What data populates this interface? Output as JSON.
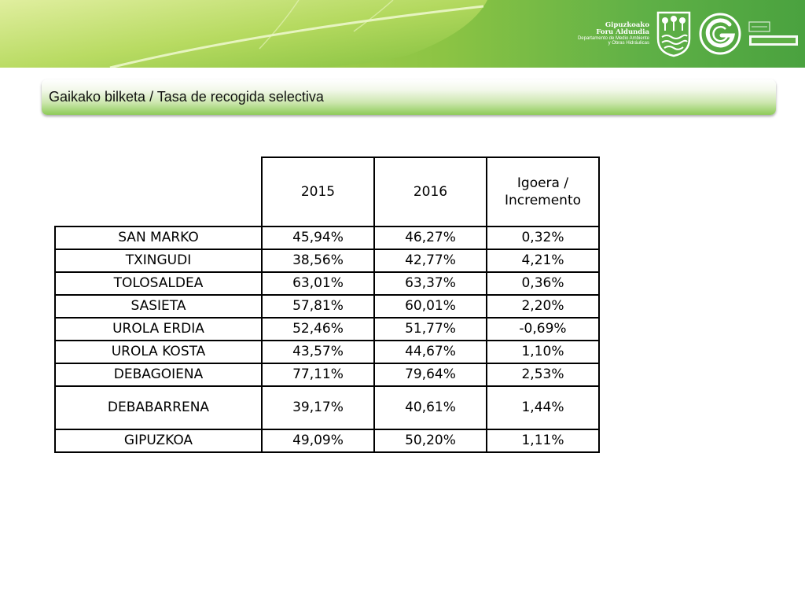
{
  "header": {
    "org_name_line1": "Gipuzkoako",
    "org_name_line2": "Foru Aldundia",
    "department_line1": "Departamento de Medio Ambiente",
    "department_line2": "y Obras Hidráulicas",
    "slogan_logo_text": [
      "ORAIN",
      "GIPUZKOA"
    ],
    "icons": [
      "leaf-image",
      "coat-of-arms-emblem",
      "g-logo-icon"
    ]
  },
  "title": "Gaikako bilketa / Tasa de recogida selectiva",
  "table": {
    "columns": [
      "",
      "2015",
      "2016",
      "Igoera / Incremento"
    ],
    "column_header_lines": {
      "increment": [
        "Igoera /",
        "Incremento"
      ]
    },
    "rows": [
      {
        "region": "SAN MARKO",
        "y2015": "45,94%",
        "y2016": "46,27%",
        "increment": "0,32%"
      },
      {
        "region": "TXINGUDI",
        "y2015": "38,56%",
        "y2016": "42,77%",
        "increment": "4,21%"
      },
      {
        "region": "TOLOSALDEA",
        "y2015": "63,01%",
        "y2016": "63,37%",
        "increment": "0,36%"
      },
      {
        "region": "SASIETA",
        "y2015": "57,81%",
        "y2016": "60,01%",
        "increment": "2,20%"
      },
      {
        "region": "UROLA ERDIA",
        "y2015": "52,46%",
        "y2016": "51,77%",
        "increment": "-0,69%"
      },
      {
        "region": "UROLA KOSTA",
        "y2015": "43,57%",
        "y2016": "44,67%",
        "increment": "1,10%"
      },
      {
        "region": "DEBAGOIENA",
        "y2015": "77,11%",
        "y2016": "79,64%",
        "increment": "2,53%"
      },
      {
        "region": "DEBABARRENA",
        "y2015": "39,17%",
        "y2016": "40,61%",
        "increment": "1,44%"
      },
      {
        "region": "GIPUZKOA",
        "y2015": "49,09%",
        "y2016": "50,20%",
        "increment": "1,11%"
      }
    ]
  },
  "colors": {
    "banner_green": "#8cc444",
    "title_bar_green": "#8ecb58",
    "table_border": "#000000"
  }
}
